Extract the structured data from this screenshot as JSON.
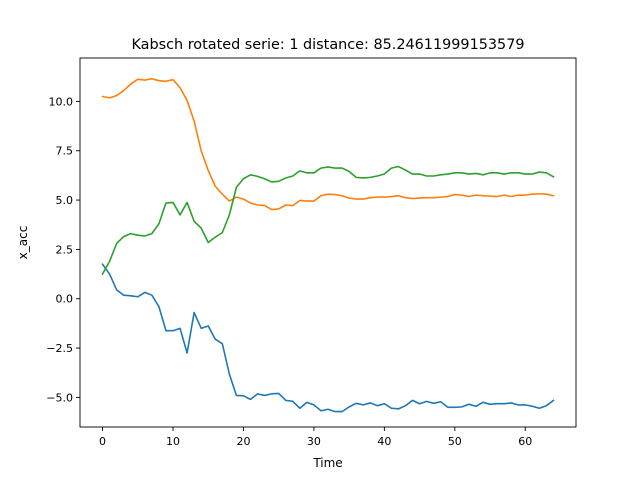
{
  "chart_data": {
    "type": "line",
    "title": "Kabsch rotated serie: 1  distance: 85.24611999153579",
    "xlabel": "Time",
    "ylabel": "x_acc",
    "xlim": [
      -3.2,
      67.2
    ],
    "ylim": [
      -6.5,
      12.2
    ],
    "xticks": [
      0,
      10,
      20,
      30,
      40,
      50,
      60
    ],
    "xtick_labels": [
      "0",
      "10",
      "20",
      "30",
      "40",
      "50",
      "60"
    ],
    "yticks": [
      -5.0,
      -2.5,
      0.0,
      2.5,
      5.0,
      7.5,
      10.0
    ],
    "ytick_labels": [
      "−5.0",
      "−2.5",
      "0.0",
      "2.5",
      "5.0",
      "7.5",
      "10.0"
    ],
    "grid": false,
    "legend": "none",
    "x": [
      0,
      1,
      2,
      3,
      4,
      5,
      6,
      7,
      8,
      9,
      10,
      11,
      12,
      13,
      14,
      15,
      16,
      17,
      18,
      19,
      20,
      21,
      22,
      23,
      24,
      25,
      26,
      27,
      28,
      29,
      30,
      31,
      32,
      33,
      34,
      35,
      36,
      37,
      38,
      39,
      40,
      41,
      42,
      43,
      44,
      45,
      46,
      47,
      48,
      49,
      50,
      51,
      52,
      53,
      54,
      55,
      56,
      57,
      58,
      59,
      60,
      61,
      62,
      63,
      64
    ],
    "series": [
      {
        "color": "#1f77b4",
        "values": [
          1.75,
          1.25,
          0.45,
          0.18,
          0.15,
          0.1,
          0.32,
          0.18,
          -0.4,
          -1.62,
          -1.62,
          -1.5,
          -2.75,
          -0.7,
          -1.5,
          -1.38,
          -2.05,
          -2.28,
          -3.82,
          -4.9,
          -4.92,
          -5.1,
          -4.82,
          -4.9,
          -4.82,
          -4.8,
          -5.15,
          -5.2,
          -5.55,
          -5.25,
          -5.38,
          -5.68,
          -5.6,
          -5.72,
          -5.72,
          -5.48,
          -5.3,
          -5.38,
          -5.28,
          -5.42,
          -5.32,
          -5.55,
          -5.58,
          -5.42,
          -5.15,
          -5.32,
          -5.2,
          -5.3,
          -5.22,
          -5.5,
          -5.5,
          -5.48,
          -5.35,
          -5.45,
          -5.25,
          -5.35,
          -5.32,
          -5.32,
          -5.28,
          -5.38,
          -5.38,
          -5.45,
          -5.55,
          -5.42,
          -5.15
        ]
      },
      {
        "color": "#ff7f0e",
        "values": [
          10.25,
          10.18,
          10.3,
          10.55,
          10.88,
          11.12,
          11.08,
          11.15,
          11.05,
          11.02,
          11.1,
          10.7,
          10.05,
          9.0,
          7.5,
          6.5,
          5.7,
          5.3,
          4.95,
          5.15,
          5.05,
          4.85,
          4.75,
          4.72,
          4.52,
          4.55,
          4.75,
          4.72,
          4.98,
          4.95,
          4.95,
          5.22,
          5.3,
          5.28,
          5.22,
          5.1,
          5.05,
          5.05,
          5.12,
          5.15,
          5.15,
          5.18,
          5.22,
          5.12,
          5.08,
          5.1,
          5.12,
          5.12,
          5.15,
          5.18,
          5.28,
          5.25,
          5.18,
          5.25,
          5.22,
          5.2,
          5.18,
          5.25,
          5.18,
          5.25,
          5.25,
          5.3,
          5.32,
          5.3,
          5.22
        ]
      },
      {
        "color": "#2ca02c",
        "values": [
          1.25,
          1.9,
          2.8,
          3.15,
          3.3,
          3.22,
          3.18,
          3.3,
          3.8,
          4.85,
          4.88,
          4.25,
          4.88,
          3.92,
          3.58,
          2.85,
          3.12,
          3.35,
          4.25,
          5.65,
          6.08,
          6.28,
          6.2,
          6.08,
          5.92,
          5.95,
          6.12,
          6.22,
          6.48,
          6.38,
          6.38,
          6.62,
          6.68,
          6.62,
          6.62,
          6.45,
          6.15,
          6.12,
          6.15,
          6.22,
          6.32,
          6.62,
          6.7,
          6.52,
          6.32,
          6.32,
          6.22,
          6.22,
          6.28,
          6.32,
          6.38,
          6.38,
          6.32,
          6.35,
          6.28,
          6.38,
          6.38,
          6.32,
          6.38,
          6.38,
          6.32,
          6.32,
          6.42,
          6.38,
          6.18
        ]
      }
    ]
  }
}
